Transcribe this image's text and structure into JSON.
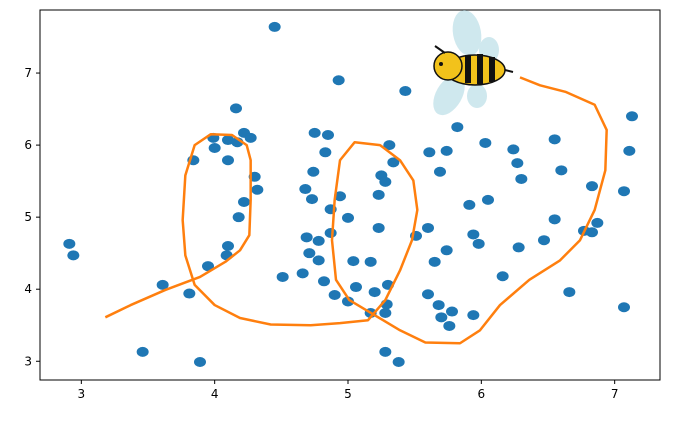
{
  "chart_data": {
    "type": "scatter",
    "xlim": [
      2.69,
      7.34
    ],
    "ylim": [
      2.74,
      7.875
    ],
    "xticks": [
      3,
      4,
      5,
      6,
      7
    ],
    "yticks": [
      3,
      4,
      5,
      6,
      7
    ],
    "series": [
      {
        "type": "scatter",
        "color": "#1f77b4",
        "x": [
          2.91,
          2.94,
          4.45,
          4.93,
          5.43,
          4.16,
          4.22,
          3.99,
          4.1,
          4.17,
          4.27,
          4.0,
          3.84,
          4.1,
          4.3,
          4.32,
          4.22,
          4.18,
          4.1,
          4.09,
          3.95,
          3.61,
          3.81,
          3.46,
          3.89,
          4.75,
          4.85,
          4.83,
          4.74,
          4.68,
          4.73,
          4.94,
          4.87,
          5.0,
          4.69,
          4.87,
          4.78,
          4.71,
          4.78,
          5.04,
          5.17,
          4.66,
          4.51,
          4.82,
          5.06,
          5.3,
          5.2,
          4.9,
          5.0,
          5.29,
          5.28,
          5.17,
          5.31,
          5.34,
          5.25,
          5.28,
          5.23,
          5.23,
          5.28,
          5.38,
          5.82,
          5.61,
          5.74,
          6.03,
          5.69,
          6.24,
          6.27,
          6.3,
          6.55,
          6.6,
          5.91,
          6.05,
          5.6,
          5.51,
          5.94,
          5.98,
          5.74,
          5.65,
          6.28,
          6.47,
          6.55,
          6.16,
          5.6,
          5.68,
          5.78,
          5.7,
          5.76,
          5.94,
          6.66,
          6.83,
          6.87,
          6.77,
          6.83,
          7.13,
          7.11,
          7.07,
          7.07
        ],
        "values": [
          4.63,
          4.47,
          7.64,
          6.9,
          6.75,
          6.51,
          6.17,
          6.1,
          6.07,
          6.04,
          6.1,
          5.96,
          5.79,
          5.79,
          5.56,
          5.38,
          5.21,
          5.0,
          4.6,
          4.47,
          4.32,
          4.06,
          3.94,
          3.13,
          2.99,
          6.17,
          6.14,
          5.9,
          5.63,
          5.39,
          5.25,
          5.29,
          5.11,
          4.99,
          4.72,
          4.78,
          4.67,
          4.5,
          4.4,
          4.39,
          4.38,
          4.22,
          4.17,
          4.11,
          4.03,
          4.06,
          3.96,
          3.92,
          3.83,
          3.79,
          3.67,
          3.67,
          6.0,
          5.76,
          5.58,
          5.49,
          5.31,
          4.85,
          3.13,
          2.99,
          6.25,
          5.9,
          5.92,
          6.03,
          5.63,
          5.94,
          5.75,
          5.53,
          6.08,
          5.65,
          5.17,
          5.24,
          4.85,
          4.74,
          4.76,
          4.63,
          4.54,
          4.38,
          4.58,
          4.68,
          4.97,
          4.18,
          3.93,
          3.78,
          3.69,
          3.61,
          3.49,
          3.64,
          3.96,
          5.43,
          4.92,
          4.81,
          4.79,
          6.4,
          5.92,
          5.36,
          3.75
        ]
      },
      {
        "type": "line",
        "color": "#ff7f0e",
        "x": [
          3.18,
          3.37,
          3.63,
          3.89,
          4.08,
          4.19,
          4.26,
          4.27,
          4.27,
          4.24,
          4.13,
          3.97,
          3.85,
          3.78,
          3.76,
          3.78,
          3.85,
          4.0,
          4.19,
          4.42,
          4.72,
          4.94,
          5.15,
          5.28,
          5.39,
          5.48,
          5.52,
          5.49,
          5.39,
          5.24,
          5.05,
          4.94,
          4.9,
          4.88,
          4.91,
          5.01,
          5.2,
          5.39,
          5.58,
          5.84,
          5.99,
          6.14,
          6.36,
          6.59,
          6.74,
          6.85,
          6.93,
          6.94,
          6.85,
          6.63,
          6.44,
          6.29
        ],
        "values": [
          3.61,
          3.78,
          3.99,
          4.17,
          4.38,
          4.54,
          4.75,
          5.24,
          5.79,
          6.0,
          6.14,
          6.15,
          6.0,
          5.58,
          4.96,
          4.47,
          4.06,
          3.78,
          3.6,
          3.51,
          3.5,
          3.53,
          3.57,
          3.85,
          4.26,
          4.68,
          5.1,
          5.51,
          5.79,
          6.0,
          6.04,
          5.79,
          5.24,
          4.68,
          4.13,
          3.85,
          3.64,
          3.43,
          3.26,
          3.25,
          3.43,
          3.78,
          4.13,
          4.4,
          4.68,
          5.1,
          5.65,
          6.21,
          6.56,
          6.74,
          6.83,
          6.94
        ]
      }
    ]
  }
}
